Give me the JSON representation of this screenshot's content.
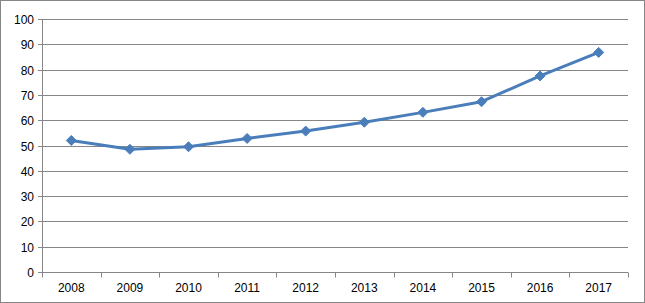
{
  "chart_data": {
    "type": "line",
    "categories": [
      "2008",
      "2009",
      "2010",
      "2011",
      "2012",
      "2013",
      "2014",
      "2015",
      "2016",
      "2017"
    ],
    "values": [
      52,
      48.5,
      49.5,
      52.8,
      55.7,
      59.2,
      63.1,
      67.3,
      77.5,
      86.8
    ],
    "color": "#4a7ebb",
    "marker": "diamond",
    "line_style": "solid",
    "ylim": [
      0,
      100
    ],
    "yticks": [
      0,
      10,
      20,
      30,
      40,
      50,
      60,
      70,
      80,
      90,
      100
    ],
    "grid": true
  }
}
